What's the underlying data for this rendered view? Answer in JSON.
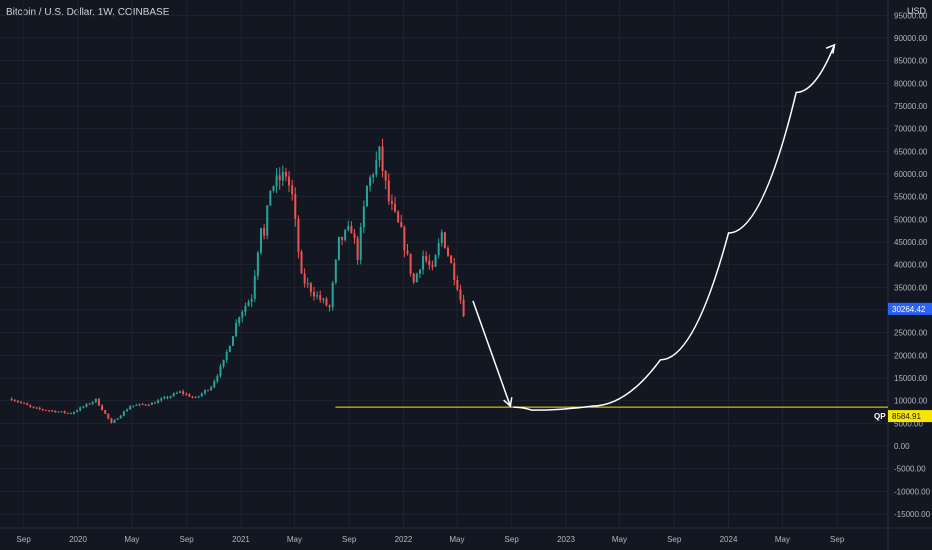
{
  "header": {
    "symbol": "Bitcoin / U.S. Dollar, 1W, COINBASE"
  },
  "colors": {
    "background": "#131722",
    "grid": "#1f2331",
    "up": "#26a69a",
    "down": "#ef5350",
    "annotation_line": "#f7e600",
    "arrow": "#ffffff",
    "price_badge": "#2962ff",
    "level_badge": "#f7e600"
  },
  "chart_data": {
    "type": "candlestick",
    "title": "Bitcoin / U.S. Dollar, 1W, COINBASE",
    "y_unit": "USD",
    "ylim": [
      -17000,
      96500
    ],
    "x_ticks": [
      "Sep",
      "2020",
      "May",
      "Sep",
      "2021",
      "May",
      "Sep",
      "2022",
      "May",
      "Sep",
      "2023",
      "May",
      "Sep",
      "2024",
      "May",
      "Sep"
    ],
    "x_tick_dates": [
      "2019-09-01",
      "2020-01-01",
      "2020-05-01",
      "2020-09-01",
      "2021-01-01",
      "2021-05-01",
      "2021-09-01",
      "2022-01-01",
      "2022-05-01",
      "2022-09-01",
      "2023-01-01",
      "2023-05-01",
      "2023-09-01",
      "2024-01-01",
      "2024-05-01",
      "2024-09-01"
    ],
    "y_ticks": [
      -15000,
      -10000,
      -5000,
      0,
      5000,
      10000,
      15000,
      20000,
      25000,
      30000,
      35000,
      40000,
      45000,
      50000,
      55000,
      60000,
      65000,
      70000,
      75000,
      80000,
      85000,
      90000,
      95000
    ],
    "y_tick_labels": [
      "-15000.00",
      "-10000.00",
      "-5000.00",
      "0.00",
      "5000.00",
      "10000.00",
      "15000.00",
      "20000.00",
      "25000.00",
      "30000.00",
      "35000.00",
      "40000.00",
      "45000.00",
      "50000.00",
      "55000.00",
      "60000.00",
      "65000.00",
      "70000.00",
      "75000.00",
      "80000.00",
      "85000.00",
      "90000.00",
      "95000.00"
    ],
    "current_price": 30264.42,
    "current_price_label": "30264.42",
    "level": 8584.91,
    "level_label": "8584.91",
    "level_marker": "QP",
    "level_start": "2021-08-01",
    "price_anchors": [
      [
        "2019-08-05",
        10400
      ],
      [
        "2019-09-23",
        8300
      ],
      [
        "2019-12-16",
        7200
      ],
      [
        "2020-02-10",
        10200
      ],
      [
        "2020-03-16",
        5000
      ],
      [
        "2020-04-27",
        8800
      ],
      [
        "2020-06-15",
        9400
      ],
      [
        "2020-08-17",
        11900
      ],
      [
        "2020-09-21",
        10500
      ],
      [
        "2020-10-26",
        13200
      ],
      [
        "2020-11-23",
        18500
      ],
      [
        "2020-12-28",
        29000
      ],
      [
        "2021-01-25",
        33000
      ],
      [
        "2021-02-15",
        49000
      ],
      [
        "2021-02-22",
        46000
      ],
      [
        "2021-03-08",
        57000
      ],
      [
        "2021-04-12",
        60000
      ],
      [
        "2021-04-26",
        55000
      ],
      [
        "2021-05-17",
        37000
      ],
      [
        "2021-06-21",
        33000
      ],
      [
        "2021-07-19",
        30500
      ],
      [
        "2021-08-09",
        45000
      ],
      [
        "2021-09-06",
        48000
      ],
      [
        "2021-09-20",
        42000
      ],
      [
        "2021-10-11",
        57000
      ],
      [
        "2021-11-08",
        64500
      ],
      [
        "2021-11-29",
        54000
      ],
      [
        "2021-12-27",
        47000
      ],
      [
        "2022-01-24",
        36000
      ],
      [
        "2022-02-14",
        42000
      ],
      [
        "2022-03-07",
        38500
      ],
      [
        "2022-03-28",
        47000
      ],
      [
        "2022-04-18",
        40000
      ],
      [
        "2022-05-02",
        35500
      ],
      [
        "2022-05-16",
        29500
      ]
    ],
    "arrows": [
      {
        "from": [
          "2022-06-06",
          32000
        ],
        "to": [
          "2022-08-29",
          8800
        ]
      },
      {
        "path": [
          [
            "2022-09-05",
            8584.91
          ],
          [
            "2022-10-17",
            7900
          ],
          [
            "2023-03-01",
            8800
          ],
          [
            "2023-08-01",
            19000
          ],
          [
            "2024-01-01",
            47000
          ],
          [
            "2024-06-01",
            78000
          ],
          [
            "2024-08-26",
            88500
          ]
        ]
      }
    ]
  }
}
